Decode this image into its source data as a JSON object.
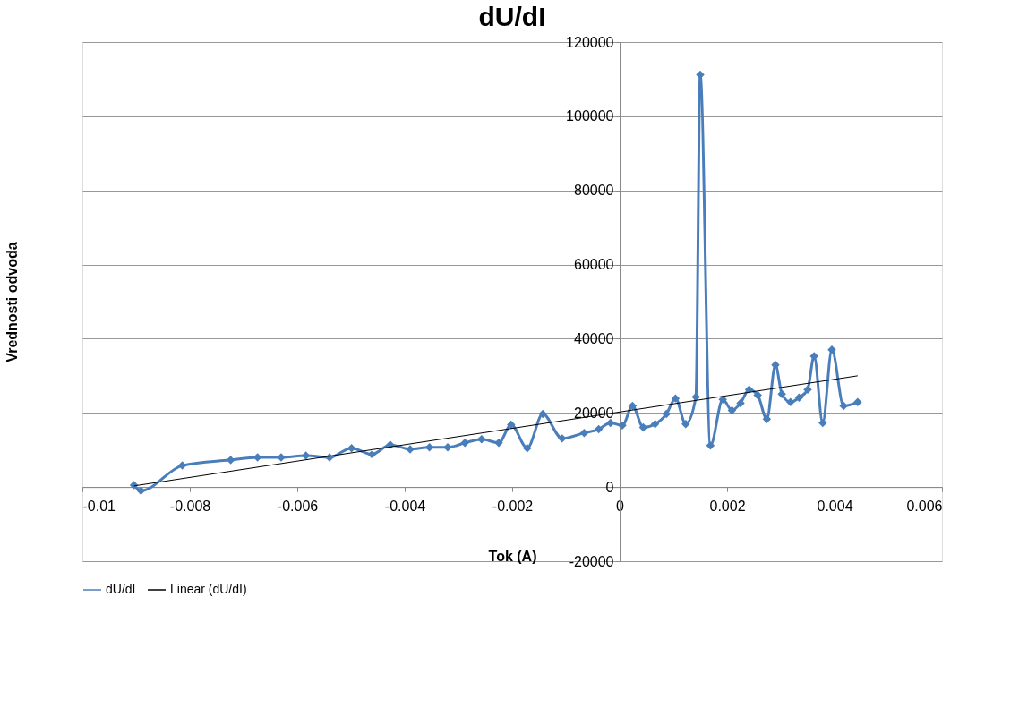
{
  "chart_data": {
    "type": "line",
    "title": "dU/dI",
    "xlabel": "Tok (A)",
    "ylabel": "Vrednosti odvoda",
    "xlim": [
      -0.01,
      0.006
    ],
    "xticks": [
      -0.01,
      -0.008,
      -0.006,
      -0.004,
      -0.002,
      0,
      0.002,
      0.004,
      0.006
    ],
    "ylim": [
      -20000,
      120000
    ],
    "yticks": [
      -20000,
      0,
      20000,
      40000,
      60000,
      80000,
      100000,
      120000
    ],
    "grid": "y",
    "legend": "bottom",
    "line_style": "solid",
    "series": [
      {
        "name": "dU/dI",
        "color": "#4a7ebb",
        "marker": "diamond",
        "x": [
          -0.00904,
          -0.00891,
          -0.00814,
          -0.00724,
          -0.00674,
          -0.0063,
          -0.00584,
          -0.0054,
          -0.00499,
          -0.00461,
          -0.00427,
          -0.0039,
          -0.00354,
          -0.0032,
          -0.00288,
          -0.00257,
          -0.00225,
          -0.00202,
          -0.00172,
          -0.00143,
          -0.00107,
          -0.00066,
          -0.00039,
          -0.00017,
          5e-05,
          0.00024,
          0.00044,
          0.00066,
          0.00087,
          0.00104,
          0.00123,
          0.00142,
          0.0015,
          0.00169,
          0.00192,
          0.00209,
          0.00225,
          0.00241,
          0.00257,
          0.00274,
          0.0029,
          0.00302,
          0.00318,
          0.00334,
          0.0035,
          0.00362,
          0.00378,
          0.00395,
          0.00417,
          0.00443
        ],
        "values": [
          500,
          -1000,
          5800,
          7300,
          8000,
          8000,
          8500,
          8000,
          10500,
          8800,
          11400,
          10200,
          10700,
          10700,
          11900,
          12900,
          11900,
          16800,
          10500,
          19700,
          13100,
          14600,
          15600,
          17300,
          16600,
          21900,
          16100,
          17000,
          19700,
          23900,
          17000,
          24300,
          111200,
          11200,
          23600,
          20700,
          22600,
          26300,
          24800,
          18300,
          32900,
          25100,
          22900,
          24100,
          26300,
          35300,
          17300,
          37000,
          21900,
          22900
        ]
      },
      {
        "name": "Linear (dU/dI)",
        "color": "#000000",
        "marker": "none",
        "type": "line",
        "x": [
          -0.00904,
          0.00443
        ],
        "values": [
          300,
          30000
        ]
      }
    ]
  }
}
